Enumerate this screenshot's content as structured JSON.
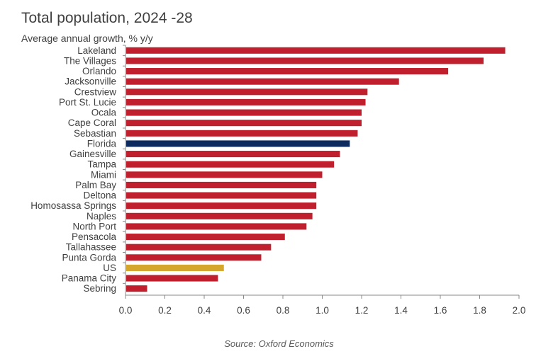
{
  "chart_data": {
    "type": "bar",
    "orientation": "horizontal",
    "title": "Total population, 2024 -28",
    "subtitle": "Average annual growth, % y/y",
    "source": "Source: Oxford Economics",
    "xlim": [
      0,
      2.0
    ],
    "x_ticks": [
      "0.0",
      "0.2",
      "0.4",
      "0.6",
      "0.8",
      "1.0",
      "1.2",
      "1.4",
      "1.6",
      "1.8",
      "2.0"
    ],
    "grid": false,
    "categories": [
      "Lakeland",
      "The Villages",
      "Orlando",
      "Jacksonville",
      "Crestview",
      "Port St. Lucie",
      "Ocala",
      "Cape Coral",
      "Sebastian",
      "Florida",
      "Gainesville",
      "Tampa",
      "Miami",
      "Palm Bay",
      "Deltona",
      "Homosassa Springs",
      "Naples",
      "North Port",
      "Pensacola",
      "Tallahassee",
      "Punta Gorda",
      "US",
      "Panama City",
      "Sebring"
    ],
    "values": [
      1.93,
      1.82,
      1.64,
      1.39,
      1.23,
      1.22,
      1.2,
      1.2,
      1.18,
      1.14,
      1.09,
      1.06,
      1.0,
      0.97,
      0.97,
      0.97,
      0.95,
      0.92,
      0.81,
      0.74,
      0.69,
      0.5,
      0.47,
      0.11
    ],
    "colors": {
      "default": "#C0202D",
      "Florida": "#0D2B5E",
      "US": "#D4A72C"
    }
  }
}
